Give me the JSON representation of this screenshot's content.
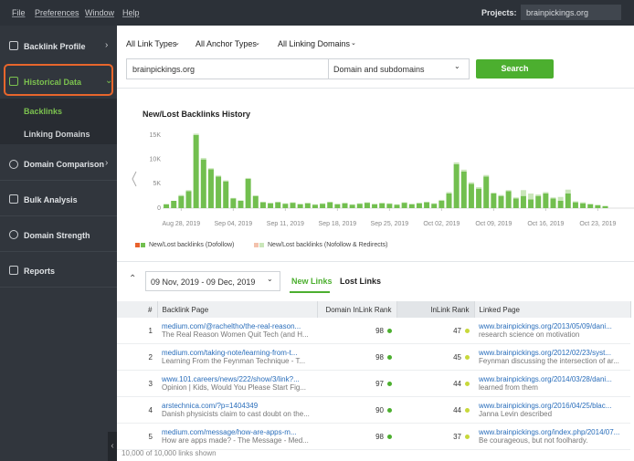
{
  "menu": [
    "File",
    "Preferences",
    "Window",
    "Help"
  ],
  "projects_label": "Projects:",
  "project": "brainpickings.org",
  "sidebar": [
    "Backlink Profile",
    "Historical Data",
    "Domain Comparison",
    "Bulk Analysis",
    "Domain Strength",
    "Reports"
  ],
  "submenu": [
    "Backlinks",
    "Linking Domains"
  ],
  "filters": [
    "All Link Types",
    "All Anchor Types",
    "All Linking Domains"
  ],
  "search": {
    "query": "brainpickings.org",
    "scope": "Domain and subdomains",
    "button": "Search"
  },
  "chart_data": {
    "type": "bar",
    "stacked": true,
    "title": "New/Lost Backlinks History",
    "categories": [
      null,
      null,
      "Aug 28, 2019",
      null,
      null,
      null,
      null,
      null,
      null,
      "Sep 04, 2019",
      null,
      null,
      null,
      null,
      null,
      null,
      "Sep 11, 2019",
      null,
      null,
      null,
      null,
      null,
      null,
      "Sep 18, 2019",
      null,
      null,
      null,
      null,
      null,
      null,
      "Sep 25, 2019",
      null,
      null,
      null,
      null,
      null,
      null,
      "Oct 02, 2019",
      null,
      null,
      null,
      null,
      null,
      null,
      "Oct 09, 2019",
      null,
      null,
      null,
      null,
      null,
      null,
      "Oct 16, 2019",
      null,
      null,
      null,
      null,
      null,
      null,
      "Oct 23, 2019",
      null
    ],
    "series": [
      {
        "name": "New/Lost backlinks (Dofollow)",
        "color": "#72bf4f",
        "values": [
          800,
          1500,
          2500,
          3500,
          15000,
          10000,
          8000,
          6500,
          5500,
          2000,
          1500,
          6000,
          2500,
          1200,
          1000,
          1200,
          900,
          1100,
          800,
          1000,
          700,
          900,
          1200,
          800,
          1000,
          700,
          900,
          1100,
          800,
          1000,
          900,
          700,
          1100,
          800,
          1000,
          1200,
          900,
          1500,
          3000,
          9000,
          7500,
          5000,
          4000,
          6500,
          3000,
          2500,
          3500,
          2000,
          2500,
          1800,
          2500,
          3000,
          2000,
          1500,
          3000,
          1200,
          1000,
          800,
          600,
          400
        ]
      },
      {
        "name": "New/Lost backlinks (Nofollow & Redirects)",
        "color": "#c9e6b9",
        "values": [
          0,
          0,
          200,
          200,
          300,
          300,
          200,
          200,
          200,
          100,
          100,
          200,
          100,
          100,
          100,
          100,
          100,
          100,
          100,
          100,
          100,
          100,
          100,
          100,
          100,
          100,
          100,
          100,
          100,
          100,
          100,
          100,
          100,
          100,
          100,
          100,
          100,
          200,
          300,
          400,
          400,
          300,
          300,
          300,
          200,
          200,
          200,
          200,
          1200,
          1200,
          300,
          300,
          200,
          800,
          800,
          200,
          200,
          100,
          100,
          100
        ]
      }
    ],
    "ylim": [
      0,
      15000
    ],
    "yticks": [
      0,
      {
        "value": 5000,
        "label": "5K"
      },
      {
        "value": 10000,
        "label": "10K"
      },
      {
        "value": 15000,
        "label": "15K"
      }
    ],
    "grid": false
  },
  "date_range": "09 Nov, 2019 - 09 Dec, 2019",
  "tabs": [
    "New Links",
    "Lost Links"
  ],
  "table": {
    "columns": [
      "#",
      "Backlink Page",
      "Domain InLink Rank",
      "InLink Rank",
      "Linked Page"
    ],
    "rows": [
      [
        1,
        "medium.com/@racheltho/the-real-reason...",
        "The Real Reason Women Quit Tech (and H...",
        98,
        47,
        "www.brainpickings.org/2013/05/09/dani...",
        "research science on motivation"
      ],
      [
        2,
        "medium.com/taking-note/learning-from-t...",
        "Learning From the Feynman Technique - T...",
        98,
        45,
        "www.brainpickings.org/2012/02/23/syst...",
        "Feynman discussing the intersection of ar..."
      ],
      [
        3,
        "www.101.careers/news/222/show/3/link?...",
        "Opinion | Kids, Would You Please Start Fig...",
        97,
        44,
        "www.brainpickings.org/2014/03/28/dani...",
        "learned from them"
      ],
      [
        4,
        "arstechnica.com/?p=1404349",
        "Danish physicists claim to cast doubt on the...",
        90,
        44,
        "www.brainpickings.org/2016/04/25/blac...",
        "Janna Levin described"
      ],
      [
        5,
        "medium.com/message/how-are-apps-m...",
        "How are apps made? - The Message - Med...",
        98,
        37,
        "www.brainpickings.org/index.php/2014/07...",
        "Be courageous, but not foolhardy."
      ]
    ]
  },
  "footer": "10,000 of 10,000 links shown"
}
